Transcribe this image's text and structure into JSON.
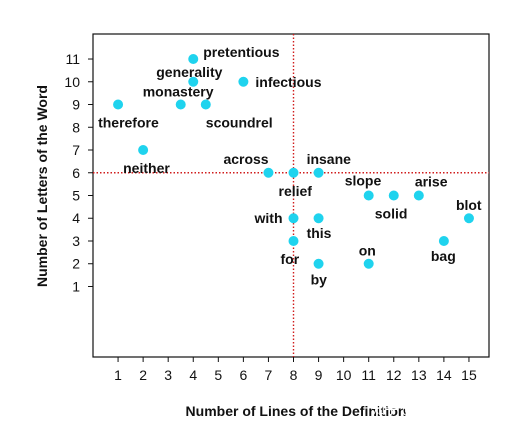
{
  "chart_data": {
    "type": "scatter",
    "xlabel": "Number of Lines of the Definition",
    "ylabel": "Number of Letters of the Word",
    "xlim": [
      0,
      15.8
    ],
    "ylim": [
      -2.1,
      12.1
    ],
    "xticks": [
      1,
      2,
      3,
      4,
      5,
      6,
      7,
      8,
      9,
      10,
      11,
      12,
      13,
      14,
      15
    ],
    "yticks": [
      1,
      2,
      3,
      4,
      5,
      6,
      7,
      8,
      9,
      10,
      11
    ],
    "grid": false,
    "reference_lines": {
      "x": 8,
      "y": 6,
      "color": "#d01c1c",
      "style": "dotted"
    },
    "marker_color": "#1fd3ee",
    "points": [
      {
        "label": "therefore",
        "x": 1,
        "y": 9
      },
      {
        "label": "neither",
        "x": 2,
        "y": 7
      },
      {
        "label": "monastery",
        "x": 3.5,
        "y": 9
      },
      {
        "label": "scoundrel",
        "x": 4.5,
        "y": 9
      },
      {
        "label": "generality",
        "x": 4,
        "y": 10
      },
      {
        "label": "pretentious",
        "x": 4,
        "y": 11
      },
      {
        "label": "infectious",
        "x": 6,
        "y": 10
      },
      {
        "label": "across",
        "x": 7,
        "y": 6
      },
      {
        "label": "relief",
        "x": 8,
        "y": 6
      },
      {
        "label": "insane",
        "x": 9,
        "y": 6
      },
      {
        "label": "with",
        "x": 8,
        "y": 4
      },
      {
        "label": "for",
        "x": 8,
        "y": 3
      },
      {
        "label": "this",
        "x": 9,
        "y": 4
      },
      {
        "label": "by",
        "x": 9,
        "y": 2
      },
      {
        "label": "slope",
        "x": 11,
        "y": 5
      },
      {
        "label": "solid",
        "x": 12,
        "y": 5
      },
      {
        "label": "arise",
        "x": 13,
        "y": 5
      },
      {
        "label": "on",
        "x": 11,
        "y": 2
      },
      {
        "label": "bag",
        "x": 14,
        "y": 3
      },
      {
        "label": "blot",
        "x": 15,
        "y": 4
      }
    ]
  },
  "watermark": "知乎 @言此落花时"
}
